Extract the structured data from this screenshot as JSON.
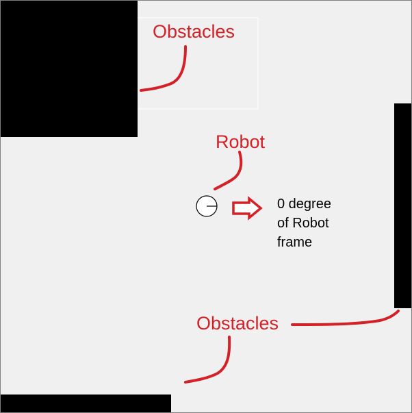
{
  "diagram": {
    "labels": {
      "obstacles_top": "Obstacles",
      "robot": "Robot",
      "obstacles_bottom": "Obstacles",
      "frame_line1": "0 degree",
      "frame_line2": "of Robot",
      "frame_line3": "frame"
    },
    "colors": {
      "background": "#f0f0f0",
      "obstacle": "#000000",
      "annotation": "#d42027",
      "border": "#7f7f7f"
    }
  }
}
